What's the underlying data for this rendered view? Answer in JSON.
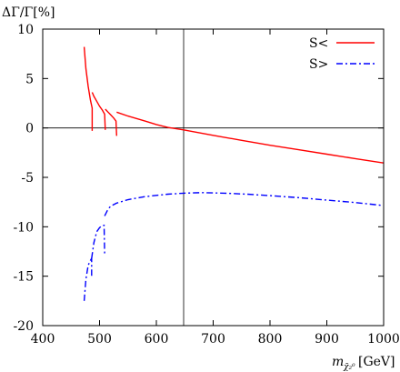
{
  "chart_data": {
    "type": "line",
    "ylabel": "ΔΓ/Γ[%]",
    "xlabel_main": "m",
    "xlabel_sub": "χ̃₂⁰",
    "xlabel_unit": "[GeV]",
    "xlim": [
      400,
      1000
    ],
    "ylim": [
      -20,
      10
    ],
    "xticks": [
      400,
      500,
      600,
      700,
      800,
      900,
      1000
    ],
    "yticks": [
      -20,
      -15,
      -10,
      -5,
      0,
      5,
      10
    ],
    "zero_line_y": 0,
    "vertical_line_x": 648,
    "legend_position": "top-right",
    "series": [
      {
        "name": "S<",
        "color": "#ff0000",
        "dash": "solid",
        "segments": [
          [
            [
              473,
              8.2
            ],
            [
              476,
              6.0
            ],
            [
              480,
              4.2
            ],
            [
              484,
              2.8
            ],
            [
              487,
              2.0
            ],
            [
              487,
              -0.3
            ]
          ],
          [
            [
              487,
              3.6
            ],
            [
              490,
              3.2
            ],
            [
              495,
              2.7
            ],
            [
              500,
              2.2
            ],
            [
              505,
              1.8
            ],
            [
              509,
              1.4
            ],
            [
              510,
              -0.2
            ]
          ],
          [
            [
              510,
              1.9
            ],
            [
              515,
              1.6
            ],
            [
              520,
              1.3
            ],
            [
              525,
              1.0
            ],
            [
              529,
              0.7
            ],
            [
              530,
              -0.8
            ]
          ],
          [
            [
              530,
              1.6
            ],
            [
              550,
              1.2
            ],
            [
              580,
              0.7
            ],
            [
              600,
              0.35
            ],
            [
              620,
              0.05
            ],
            [
              648,
              -0.2
            ],
            [
              700,
              -0.75
            ],
            [
              750,
              -1.25
            ],
            [
              800,
              -1.75
            ],
            [
              850,
              -2.2
            ],
            [
              900,
              -2.65
            ],
            [
              950,
              -3.1
            ],
            [
              1000,
              -3.55
            ]
          ]
        ]
      },
      {
        "name": "S>",
        "color": "#0000ff",
        "dash": "dashdot",
        "segments": [
          [
            [
              473,
              -17.5
            ],
            [
              476,
              -15.3
            ],
            [
              480,
              -13.9
            ],
            [
              484,
              -13.4
            ],
            [
              486,
              -13.2
            ],
            [
              486,
              -15.0
            ]
          ],
          [
            [
              486,
              -13.2
            ],
            [
              490,
              -11.6
            ],
            [
              495,
              -10.5
            ],
            [
              500,
              -10.1
            ],
            [
              504,
              -9.9
            ],
            [
              508,
              -9.85
            ],
            [
              509,
              -12.7
            ]
          ],
          [
            [
              509,
              -8.9
            ],
            [
              515,
              -8.2
            ],
            [
              520,
              -7.9
            ],
            [
              530,
              -7.6
            ],
            [
              550,
              -7.25
            ],
            [
              580,
              -6.95
            ],
            [
              620,
              -6.7
            ],
            [
              648,
              -6.6
            ],
            [
              680,
              -6.55
            ],
            [
              720,
              -6.6
            ],
            [
              760,
              -6.7
            ],
            [
              800,
              -6.85
            ],
            [
              850,
              -7.05
            ],
            [
              900,
              -7.3
            ],
            [
              950,
              -7.55
            ],
            [
              1000,
              -7.85
            ]
          ]
        ]
      }
    ]
  }
}
